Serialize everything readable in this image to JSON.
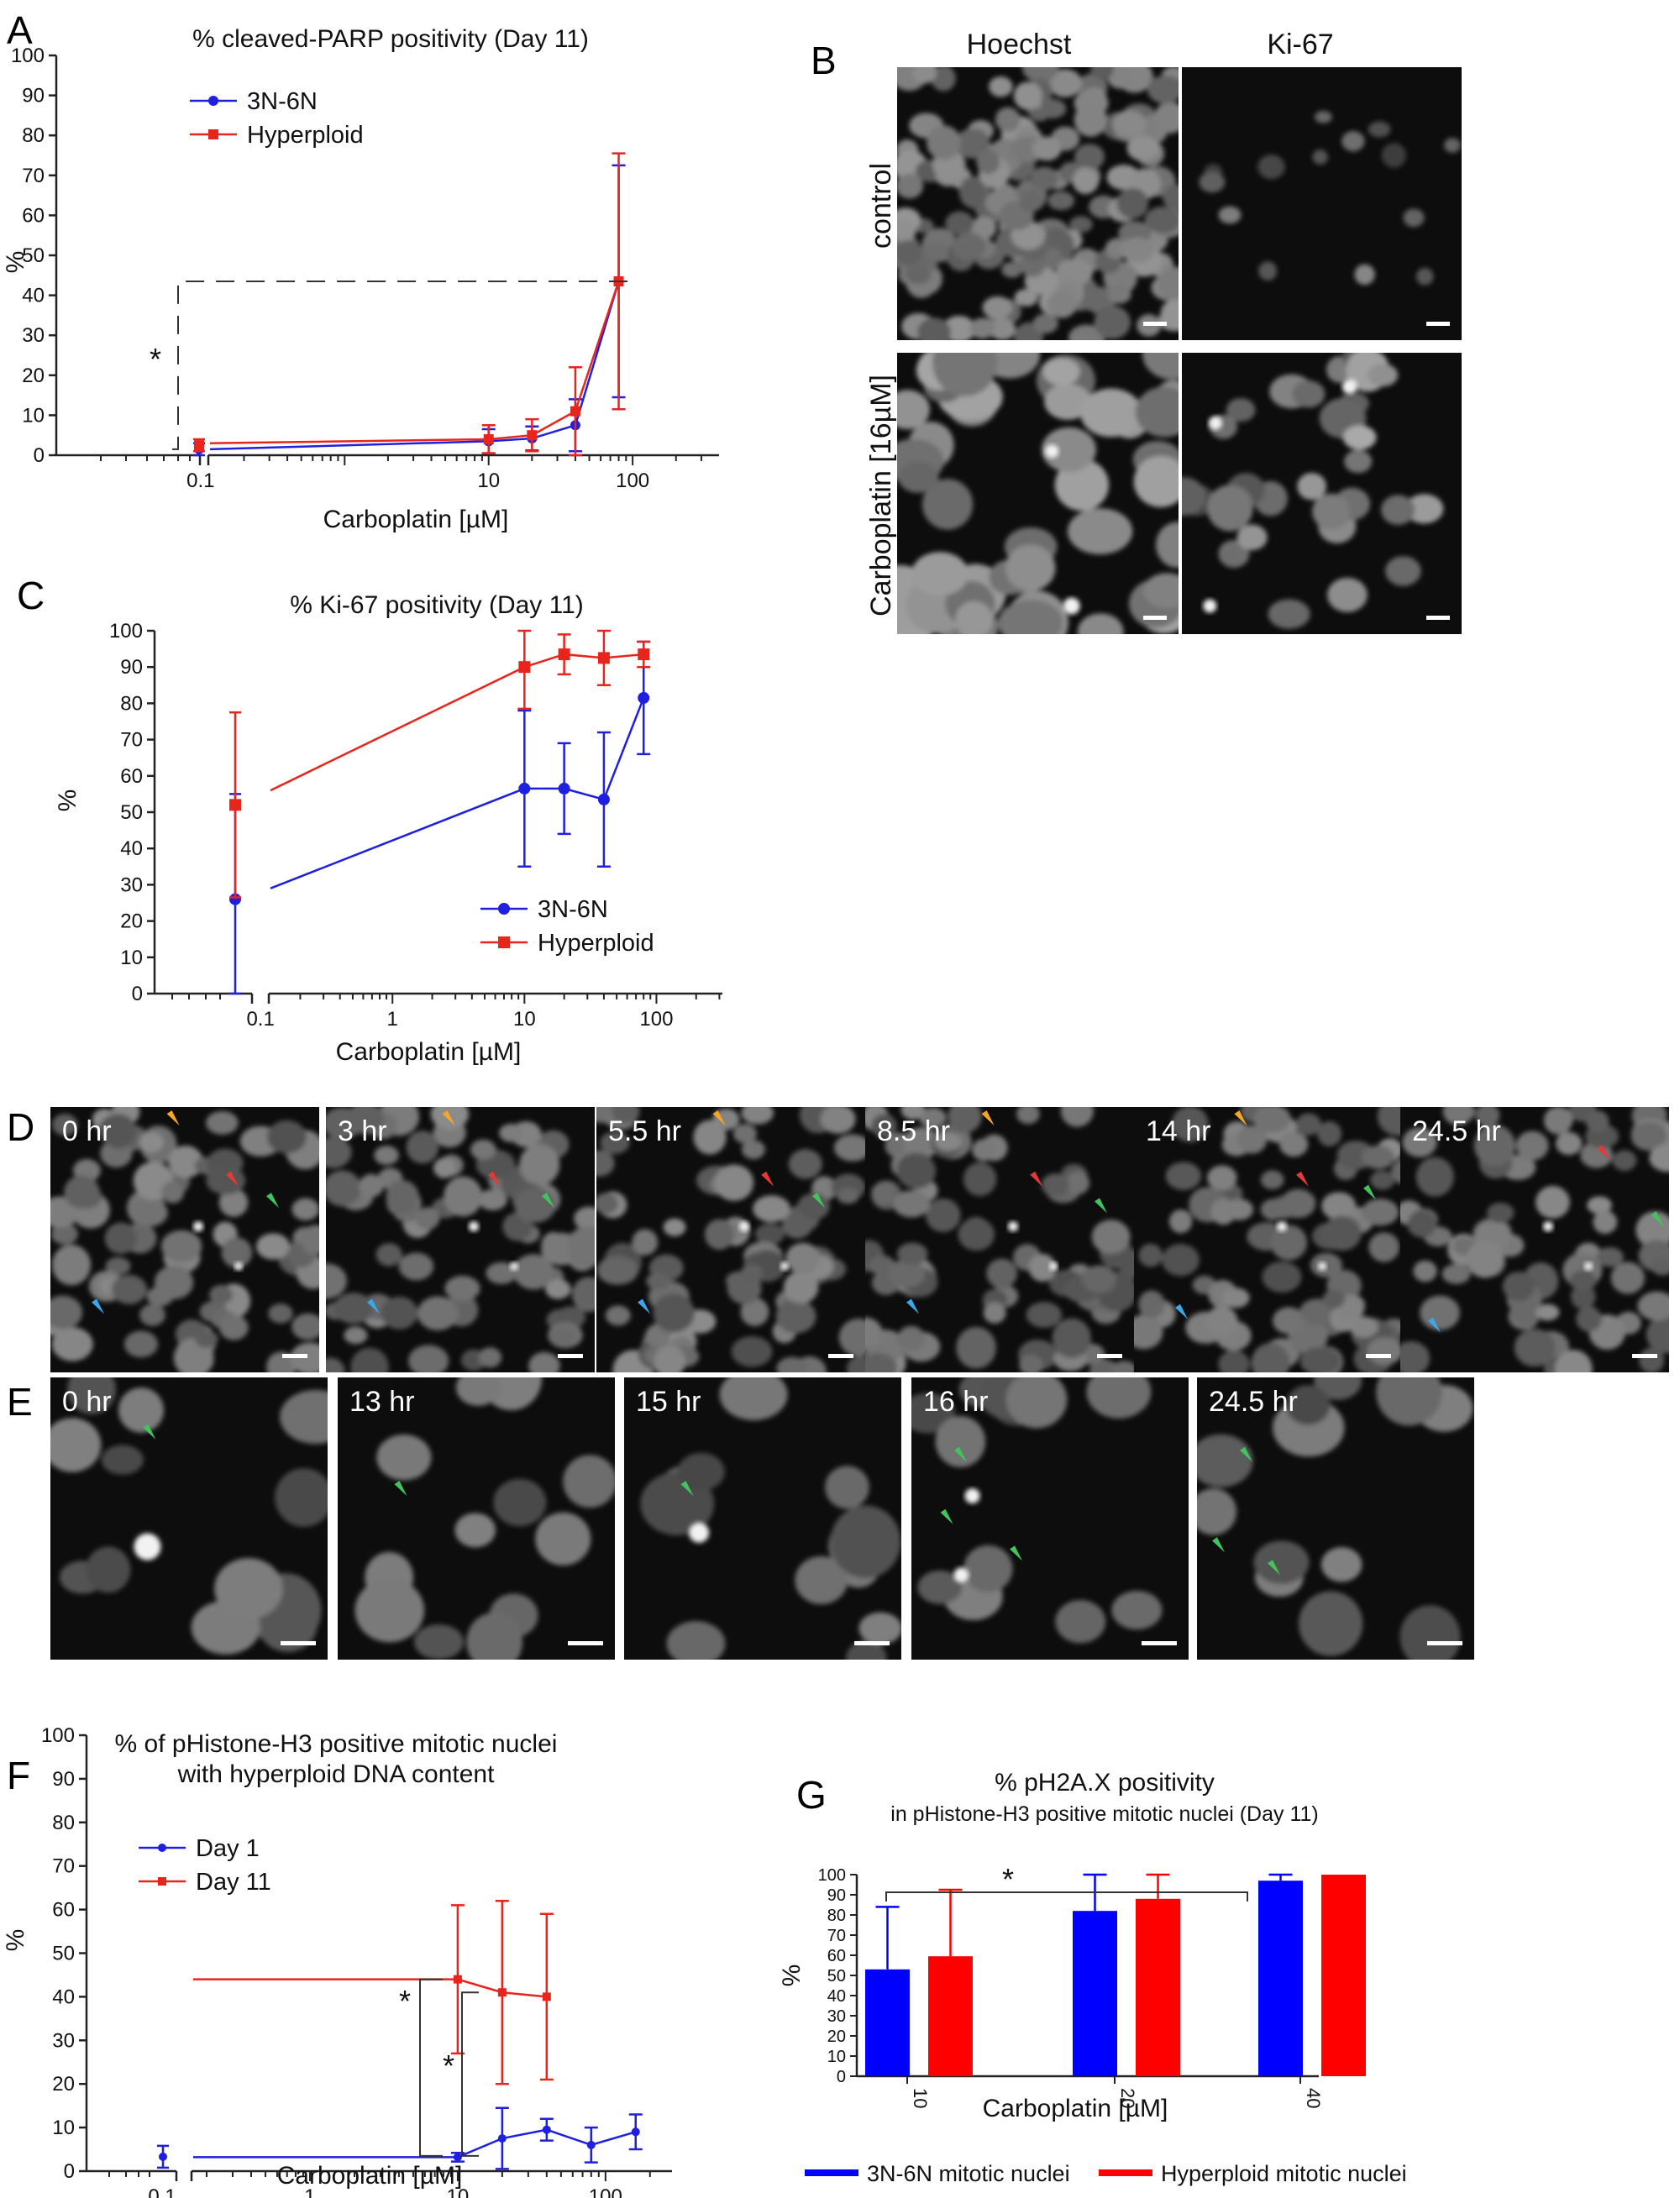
{
  "panels": {
    "A": "A",
    "B": "B",
    "C": "C",
    "D": "D",
    "E": "E",
    "F": "F",
    "G": "G"
  },
  "colors": {
    "blue": "#1f1fe0",
    "red": "#e8251c",
    "bar_blue": "#0000ff",
    "bar_red": "#ff0000"
  },
  "micrographs": {
    "B": {
      "columns": [
        "Hoechst",
        "Ki-67"
      ],
      "rows": [
        "control",
        "Carboplatin [16µM]"
      ]
    },
    "D": {
      "timepoints": [
        "0 hr",
        "3 hr",
        "5.5 hr",
        "8.5 hr",
        "14 hr",
        "24.5 hr"
      ]
    },
    "E": {
      "timepoints": [
        "0 hr",
        "13 hr",
        "15 hr",
        "16 hr",
        "24.5 hr"
      ]
    }
  },
  "chart_data": [
    {
      "id": "A",
      "type": "line",
      "title": "% cleaved-PARP positivity (Day 11)",
      "xlabel": "Carboplatin [µM]",
      "ylabel": "%",
      "xscale": "log",
      "xticks": [
        "0.1",
        "10",
        "100"
      ],
      "yticks": [
        "0",
        "10",
        "20",
        "30",
        "40",
        "50",
        "60",
        "70",
        "80",
        "90",
        "100"
      ],
      "ylim": [
        0,
        100
      ],
      "legend": "top-left",
      "significance": "*",
      "control": {
        "blue": {
          "y": 1.5,
          "err": 1.5
        },
        "red": {
          "y": 2.5,
          "err": 1.5
        }
      },
      "series": [
        {
          "name": "3N-6N",
          "color": "blue",
          "marker": "circle",
          "x": [
            10,
            20,
            40,
            80
          ],
          "y": [
            3.5,
            4.2,
            7.5,
            43.5
          ],
          "err": [
            3,
            3,
            6.5,
            29
          ]
        },
        {
          "name": "Hyperploid",
          "color": "red",
          "marker": "square",
          "x": [
            10,
            20,
            40,
            80
          ],
          "y": [
            4,
            5,
            11,
            43.5
          ],
          "err": [
            3.5,
            4,
            11,
            32
          ]
        }
      ]
    },
    {
      "id": "C",
      "type": "line",
      "title": "% Ki-67 positivity (Day 11)",
      "xlabel": "Carboplatin [µM]",
      "ylabel": "%",
      "xscale": "log",
      "xticks": [
        "0.1",
        "1",
        "10",
        "100"
      ],
      "yticks": [
        "0",
        "10",
        "20",
        "30",
        "40",
        "50",
        "60",
        "70",
        "80",
        "90",
        "100"
      ],
      "ylim": [
        0,
        100
      ],
      "legend": "bottom-right",
      "control": {
        "blue": {
          "y": 26,
          "err": 29
        },
        "red": {
          "y": 52,
          "err": 25.5
        }
      },
      "series": [
        {
          "name": "3N-6N",
          "color": "blue",
          "marker": "circle",
          "x": [
            10,
            20,
            40,
            80
          ],
          "y": [
            56.5,
            56.5,
            53.5,
            81.5
          ],
          "err": [
            21.5,
            12.5,
            18.5,
            15.5
          ]
        },
        {
          "name": "Hyperploid",
          "color": "red",
          "marker": "square",
          "x": [
            10,
            20,
            40,
            80
          ],
          "y": [
            90,
            93.5,
            92.5,
            93.5
          ],
          "err": [
            11.5,
            5.5,
            7.5,
            3.5
          ]
        }
      ]
    },
    {
      "id": "F",
      "type": "line",
      "title": "% of pHistone-H3 positive mitotic nuclei",
      "subtitle": "with hyperploid DNA content",
      "xlabel": "Carboplatin [µM]",
      "ylabel": "%",
      "xscale": "log",
      "xticks": [
        "0.1",
        "1",
        "10",
        "100"
      ],
      "yticks": [
        "0",
        "10",
        "20",
        "30",
        "40",
        "50",
        "60",
        "70",
        "80",
        "90",
        "100"
      ],
      "ylim": [
        0,
        100
      ],
      "legend": "top-left",
      "significance": [
        "*",
        "*"
      ],
      "control": {
        "blue": {
          "y": 3.3,
          "err": 2.5
        }
      },
      "series": [
        {
          "name": "Day 1",
          "color": "blue",
          "marker": "circle",
          "x": [
            10,
            20,
            40,
            80,
            160
          ],
          "y": [
            3.2,
            7.5,
            9.5,
            6,
            9
          ],
          "err": [
            1,
            7,
            2.5,
            4,
            4
          ]
        },
        {
          "name": "Day 11",
          "color": "red",
          "marker": "square",
          "x": [
            10,
            20,
            40
          ],
          "y": [
            44,
            41,
            40
          ],
          "err": [
            17,
            21,
            19
          ]
        }
      ]
    },
    {
      "id": "G",
      "type": "bar",
      "title": "% pH2A.X positivity",
      "subtitle": "in pHistone-H3 positive mitotic nuclei (Day 11)",
      "xlabel": "Carboplatin [µM]",
      "ylabel": "%",
      "categories": [
        "10",
        "20",
        "40"
      ],
      "yticks": [
        "0",
        "10",
        "20",
        "30",
        "40",
        "50",
        "60",
        "70",
        "80",
        "90",
        "100"
      ],
      "ylim": [
        0,
        100
      ],
      "legend": "bottom",
      "significance": "*",
      "series": [
        {
          "name": "3N-6N mitotic nuclei",
          "color": "bar_blue",
          "values": [
            53,
            82,
            97
          ],
          "err": [
            31,
            19,
            3
          ]
        },
        {
          "name": "Hyperploid mitotic nuclei",
          "color": "bar_red",
          "values": [
            59.5,
            88,
            100
          ],
          "err": [
            33,
            14,
            0
          ]
        }
      ]
    }
  ]
}
